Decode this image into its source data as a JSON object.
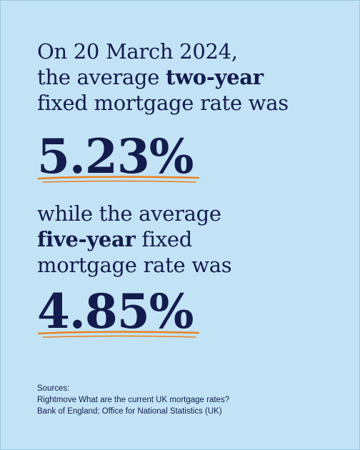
{
  "colors": {
    "background": "#c2e3f5",
    "text": "#141c4d",
    "accent_underline": "#e7852a"
  },
  "first_statement": {
    "line1": "On 20 March 2024,",
    "line2_pre": "the average ",
    "line2_bold": "two-year",
    "line3": "fixed mortgage rate was"
  },
  "first_rate": "5.23%",
  "second_statement": {
    "line1": "while the average",
    "line2_bold": "five-year",
    "line2_post": " fixed",
    "line3": "mortgage rate was"
  },
  "second_rate": "4.85%",
  "sources": {
    "heading": "Sources:",
    "lines": [
      "Rightmove What are the current UK mortgage rates?",
      "Bank of England; Office for National Statistics (UK)"
    ]
  }
}
